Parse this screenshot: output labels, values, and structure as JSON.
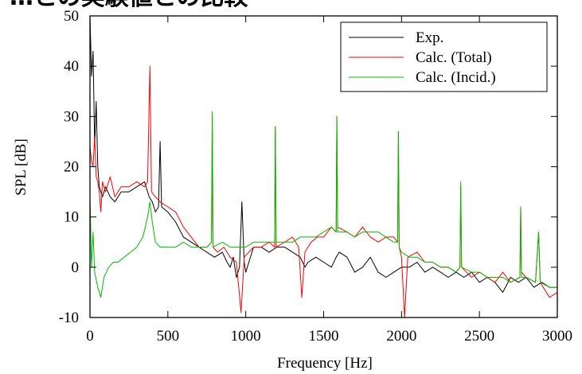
{
  "chart_data": {
    "type": "line",
    "title": "…との実験値との比較",
    "xlabel": "Frequency [Hz]",
    "ylabel": "SPL [dB]",
    "xlim": [
      0,
      3000
    ],
    "ylim": [
      -10,
      50
    ],
    "x_ticks": [
      "0",
      "500",
      "1000",
      "1500",
      "2000",
      "2500",
      "3000"
    ],
    "y_ticks": [
      "-10",
      "0",
      "10",
      "20",
      "30",
      "40",
      "50"
    ],
    "legend_position": "top-right",
    "grid": false,
    "series": [
      {
        "name": "Exp.",
        "color": "#000000",
        "points": [
          [
            0,
            50
          ],
          [
            10,
            38
          ],
          [
            20,
            43
          ],
          [
            30,
            24
          ],
          [
            40,
            33
          ],
          [
            50,
            20
          ],
          [
            60,
            16
          ],
          [
            80,
            14
          ],
          [
            100,
            16
          ],
          [
            130,
            14
          ],
          [
            160,
            13
          ],
          [
            200,
            15
          ],
          [
            250,
            15
          ],
          [
            300,
            16
          ],
          [
            350,
            17
          ],
          [
            380,
            14
          ],
          [
            400,
            13
          ],
          [
            420,
            11
          ],
          [
            440,
            12
          ],
          [
            450,
            25
          ],
          [
            460,
            12
          ],
          [
            500,
            11
          ],
          [
            550,
            9
          ],
          [
            600,
            6
          ],
          [
            650,
            5
          ],
          [
            700,
            4
          ],
          [
            750,
            3
          ],
          [
            800,
            2
          ],
          [
            850,
            3
          ],
          [
            880,
            1
          ],
          [
            900,
            0
          ],
          [
            920,
            2
          ],
          [
            940,
            -2
          ],
          [
            960,
            0
          ],
          [
            975,
            13
          ],
          [
            990,
            1
          ],
          [
            1000,
            -1
          ],
          [
            1020,
            1
          ],
          [
            1050,
            4
          ],
          [
            1100,
            4
          ],
          [
            1150,
            3
          ],
          [
            1200,
            4
          ],
          [
            1250,
            4
          ],
          [
            1300,
            3
          ],
          [
            1350,
            2
          ],
          [
            1380,
            0
          ],
          [
            1400,
            1
          ],
          [
            1450,
            2
          ],
          [
            1500,
            1
          ],
          [
            1550,
            0
          ],
          [
            1580,
            2
          ],
          [
            1600,
            3
          ],
          [
            1650,
            2
          ],
          [
            1700,
            -1
          ],
          [
            1750,
            0
          ],
          [
            1800,
            2
          ],
          [
            1850,
            -1
          ],
          [
            1900,
            -2
          ],
          [
            1950,
            -1
          ],
          [
            2000,
            0
          ],
          [
            2050,
            0
          ],
          [
            2100,
            1
          ],
          [
            2150,
            -1
          ],
          [
            2200,
            0
          ],
          [
            2250,
            -1
          ],
          [
            2300,
            -2
          ],
          [
            2350,
            -1
          ],
          [
            2400,
            -2
          ],
          [
            2450,
            -1
          ],
          [
            2500,
            -3
          ],
          [
            2550,
            -2
          ],
          [
            2600,
            -3
          ],
          [
            2650,
            -5
          ],
          [
            2700,
            -2
          ],
          [
            2750,
            -3
          ],
          [
            2800,
            -2
          ],
          [
            2850,
            -4
          ],
          [
            2900,
            -3
          ],
          [
            2950,
            -4
          ],
          [
            3000,
            -4
          ]
        ]
      },
      {
        "name": "Calc. (Total)",
        "color": "#ff0000",
        "points": [
          [
            0,
            24
          ],
          [
            10,
            21
          ],
          [
            20,
            20
          ],
          [
            30,
            26
          ],
          [
            40,
            18
          ],
          [
            50,
            17
          ],
          [
            60,
            15
          ],
          [
            70,
            11
          ],
          [
            80,
            17
          ],
          [
            100,
            15
          ],
          [
            130,
            18
          ],
          [
            160,
            14
          ],
          [
            200,
            16
          ],
          [
            250,
            16
          ],
          [
            300,
            17
          ],
          [
            350,
            16
          ],
          [
            370,
            17
          ],
          [
            385,
            40
          ],
          [
            395,
            15
          ],
          [
            420,
            14
          ],
          [
            450,
            13
          ],
          [
            500,
            12
          ],
          [
            550,
            11
          ],
          [
            600,
            8
          ],
          [
            650,
            6
          ],
          [
            700,
            4
          ],
          [
            750,
            4
          ],
          [
            780,
            5
          ],
          [
            785,
            30
          ],
          [
            790,
            4
          ],
          [
            820,
            3
          ],
          [
            860,
            4
          ],
          [
            900,
            2
          ],
          [
            940,
            1
          ],
          [
            970,
            -9
          ],
          [
            990,
            2
          ],
          [
            1050,
            4
          ],
          [
            1100,
            4
          ],
          [
            1150,
            5
          ],
          [
            1185,
            4
          ],
          [
            1190,
            28
          ],
          [
            1195,
            4
          ],
          [
            1250,
            5
          ],
          [
            1300,
            6
          ],
          [
            1340,
            4
          ],
          [
            1360,
            -6
          ],
          [
            1380,
            3
          ],
          [
            1420,
            5
          ],
          [
            1460,
            6
          ],
          [
            1500,
            6
          ],
          [
            1550,
            8
          ],
          [
            1580,
            7
          ],
          [
            1585,
            30
          ],
          [
            1590,
            8
          ],
          [
            1650,
            7
          ],
          [
            1700,
            6
          ],
          [
            1750,
            8
          ],
          [
            1800,
            6
          ],
          [
            1850,
            5
          ],
          [
            1900,
            6
          ],
          [
            1950,
            6
          ],
          [
            1975,
            5
          ],
          [
            1980,
            27
          ],
          [
            1985,
            4
          ],
          [
            2000,
            2
          ],
          [
            2020,
            -10
          ],
          [
            2040,
            2
          ],
          [
            2100,
            3
          ],
          [
            2150,
            1
          ],
          [
            2200,
            1
          ],
          [
            2250,
            0
          ],
          [
            2300,
            0
          ],
          [
            2350,
            -1
          ],
          [
            2375,
            0
          ],
          [
            2380,
            16
          ],
          [
            2385,
            0
          ],
          [
            2450,
            -2
          ],
          [
            2500,
            -1
          ],
          [
            2550,
            -2
          ],
          [
            2600,
            -3
          ],
          [
            2650,
            -1
          ],
          [
            2700,
            -3
          ],
          [
            2760,
            -2
          ],
          [
            2765,
            12
          ],
          [
            2770,
            -1
          ],
          [
            2800,
            -2
          ],
          [
            2860,
            -3
          ],
          [
            2880,
            7
          ],
          [
            2890,
            -3
          ],
          [
            2950,
            -6
          ],
          [
            3000,
            -5
          ]
        ]
      },
      {
        "name": "Calc. (Incid.)",
        "color": "#00bb00",
        "points": [
          [
            0,
            14
          ],
          [
            10,
            0
          ],
          [
            20,
            7
          ],
          [
            30,
            -1
          ],
          [
            50,
            -4
          ],
          [
            70,
            -6
          ],
          [
            90,
            -2
          ],
          [
            120,
            0
          ],
          [
            150,
            1
          ],
          [
            180,
            1
          ],
          [
            220,
            2
          ],
          [
            260,
            3
          ],
          [
            300,
            4
          ],
          [
            340,
            6
          ],
          [
            370,
            10
          ],
          [
            385,
            13
          ],
          [
            400,
            9
          ],
          [
            420,
            5
          ],
          [
            450,
            4
          ],
          [
            500,
            4
          ],
          [
            550,
            4
          ],
          [
            600,
            5
          ],
          [
            650,
            4
          ],
          [
            700,
            4
          ],
          [
            750,
            4
          ],
          [
            780,
            5
          ],
          [
            785,
            31
          ],
          [
            790,
            4
          ],
          [
            850,
            5
          ],
          [
            900,
            4
          ],
          [
            950,
            4
          ],
          [
            1000,
            4
          ],
          [
            1050,
            5
          ],
          [
            1100,
            5
          ],
          [
            1150,
            5
          ],
          [
            1185,
            5
          ],
          [
            1190,
            28
          ],
          [
            1195,
            5
          ],
          [
            1250,
            5
          ],
          [
            1300,
            5
          ],
          [
            1350,
            6
          ],
          [
            1400,
            6
          ],
          [
            1450,
            6
          ],
          [
            1500,
            7
          ],
          [
            1550,
            8
          ],
          [
            1580,
            7
          ],
          [
            1585,
            30
          ],
          [
            1590,
            7
          ],
          [
            1650,
            7
          ],
          [
            1700,
            6
          ],
          [
            1750,
            7
          ],
          [
            1800,
            7
          ],
          [
            1850,
            7
          ],
          [
            1900,
            6
          ],
          [
            1950,
            5
          ],
          [
            1975,
            5
          ],
          [
            1980,
            27
          ],
          [
            1985,
            4
          ],
          [
            2000,
            3
          ],
          [
            2050,
            2
          ],
          [
            2100,
            2
          ],
          [
            2150,
            1
          ],
          [
            2200,
            1
          ],
          [
            2250,
            0
          ],
          [
            2300,
            0
          ],
          [
            2350,
            -1
          ],
          [
            2375,
            0
          ],
          [
            2380,
            17
          ],
          [
            2385,
            0
          ],
          [
            2450,
            -1
          ],
          [
            2500,
            -1
          ],
          [
            2550,
            -2
          ],
          [
            2600,
            -2
          ],
          [
            2650,
            -2
          ],
          [
            2700,
            -3
          ],
          [
            2760,
            -2
          ],
          [
            2765,
            12
          ],
          [
            2770,
            -2
          ],
          [
            2800,
            -2
          ],
          [
            2860,
            -3
          ],
          [
            2880,
            7
          ],
          [
            2890,
            -3
          ],
          [
            2950,
            -4
          ],
          [
            3000,
            -4
          ]
        ]
      }
    ]
  }
}
